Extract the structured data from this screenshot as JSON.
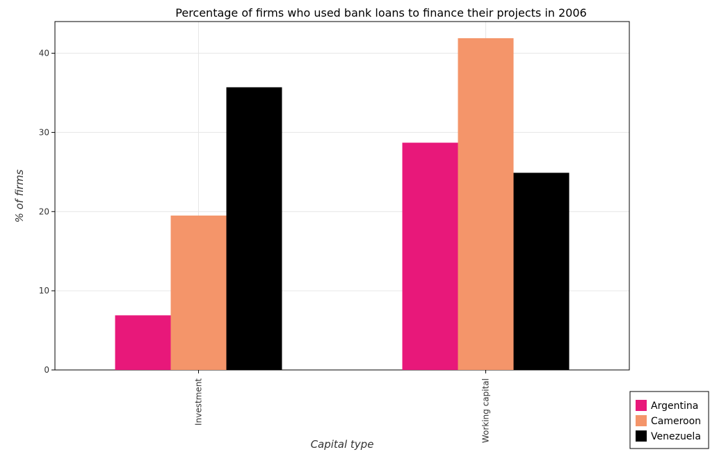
{
  "chart_data": {
    "type": "bar",
    "title": "Percentage of firms who used bank loans to finance their projects in 2006",
    "xlabel": "Capital type",
    "ylabel": "% of firms",
    "categories": [
      "Investment",
      "Working capital"
    ],
    "series": [
      {
        "name": "Argentina",
        "color": "#e8187a",
        "values": [
          6.9,
          28.7
        ]
      },
      {
        "name": "Cameroon",
        "color": "#f4956a",
        "values": [
          19.5,
          41.9
        ]
      },
      {
        "name": "Venezuela",
        "color": "#000000",
        "values": [
          35.7,
          24.9
        ]
      }
    ],
    "ylim": [
      0,
      44
    ],
    "yticks": [
      0,
      10,
      20,
      30,
      40
    ],
    "grid": true,
    "legend_position": "bottom-right"
  }
}
